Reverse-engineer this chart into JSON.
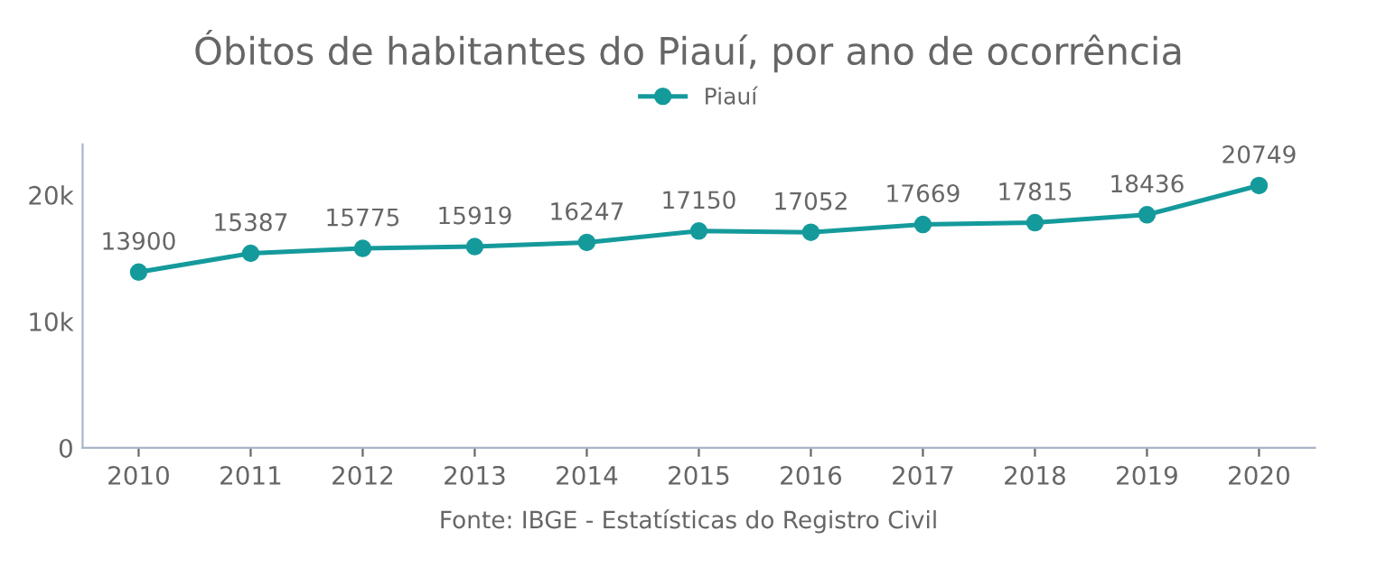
{
  "chart_data": {
    "type": "line",
    "title": "Óbitos de habitantes do Piauí, por ano de ocorrência",
    "categories": [
      "2010",
      "2011",
      "2012",
      "2013",
      "2014",
      "2015",
      "2016",
      "2017",
      "2018",
      "2019",
      "2020"
    ],
    "series": [
      {
        "name": "Piauí",
        "color": "#159a9c",
        "values": [
          13900,
          15387,
          15775,
          15919,
          16247,
          17150,
          17052,
          17669,
          17815,
          18436,
          20749
        ]
      }
    ],
    "ylim": [
      0,
      24000
    ],
    "yticks": [
      0,
      {
        "value": 10000,
        "label": "10k"
      },
      {
        "value": 20000,
        "label": "20k"
      }
    ],
    "data_labels": true,
    "marker": "circle",
    "legend": "top",
    "grid": false,
    "annotations": [
      "Fonte: IBGE - Estatísticas do Registro Civil"
    ]
  }
}
